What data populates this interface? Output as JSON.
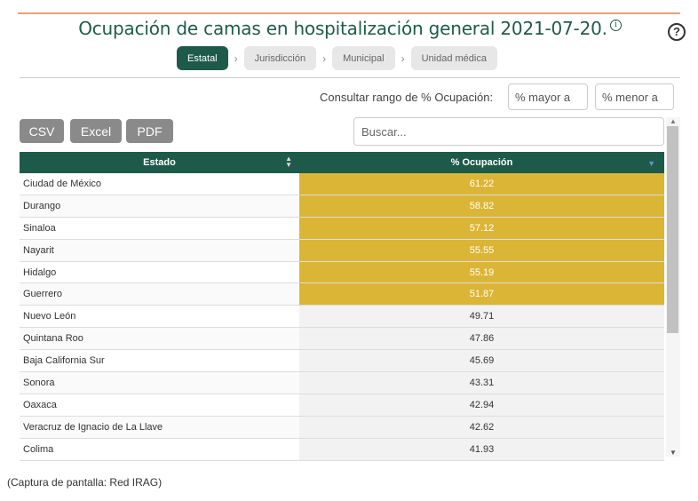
{
  "header": {
    "title": "Ocupación de camas en hospitalización general 2021-07-20.",
    "info_icon": "ⓘ",
    "help_icon": "?"
  },
  "breadcrumb": {
    "items": [
      "Estatal",
      "Jurisdicción",
      "Municipal",
      "Unidad médica"
    ],
    "separator": "›"
  },
  "range": {
    "label": "Consultar rango de % Ocupación:",
    "min_placeholder": "% mayor a",
    "max_placeholder": "% menor a"
  },
  "export_buttons": [
    "CSV",
    "Excel",
    "PDF"
  ],
  "search": {
    "placeholder": "Buscar..."
  },
  "table": {
    "columns": [
      "Estado",
      "% Ocupación"
    ],
    "rows": [
      {
        "estado": "Ciudad de México",
        "ocupacion": "61.22"
      },
      {
        "estado": "Durango",
        "ocupacion": "58.82"
      },
      {
        "estado": "Sinaloa",
        "ocupacion": "57.12"
      },
      {
        "estado": "Nayarit",
        "ocupacion": "55.55"
      },
      {
        "estado": "Hidalgo",
        "ocupacion": "55.19"
      },
      {
        "estado": "Guerrero",
        "ocupacion": "51.87"
      },
      {
        "estado": "Nuevo León",
        "ocupacion": "49.71"
      },
      {
        "estado": "Quintana Roo",
        "ocupacion": "47.86"
      },
      {
        "estado": "Baja California Sur",
        "ocupacion": "45.69"
      },
      {
        "estado": "Sonora",
        "ocupacion": "43.31"
      },
      {
        "estado": "Oaxaca",
        "ocupacion": "42.94"
      },
      {
        "estado": "Veracruz de Ignacio de La Llave",
        "ocupacion": "42.62"
      },
      {
        "estado": "Colima",
        "ocupacion": "41.93"
      }
    ],
    "highlight_threshold": 50,
    "highlight_color": "#dbb535"
  },
  "caption": "(Captura de pantalla: Red IRAG)",
  "colors": {
    "brand": "#1e5a49",
    "title": "#1f5c4a"
  }
}
